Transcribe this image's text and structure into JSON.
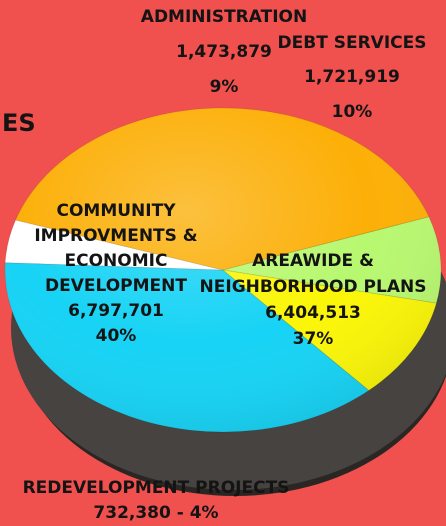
{
  "chart_data": {
    "type": "pie",
    "title_fragment": "ES",
    "slices": [
      {
        "label": "AREAWIDE & NEIGHBORHOOD PLANS",
        "value": 6404513,
        "value_text": "6,404,513",
        "percent": "37%",
        "color": "#17d3f5"
      },
      {
        "label": "REDEVELOPMENT PROJECTS",
        "value": 732380,
        "value_text": "732,380 - 4%",
        "percent": "4%",
        "color": "#ffffff"
      },
      {
        "label": "COMMUNITY IMPROVMENTS & ECONOMIC DEVELOPMENT",
        "value": 6797701,
        "value_text": "6,797,701",
        "percent": "40%",
        "color": "#fcaf07"
      },
      {
        "label": "ADMINISTRATION",
        "value": 1473879,
        "value_text": "1,473,879",
        "percent": "9%",
        "color": "#b8f870"
      },
      {
        "label": "DEBT SERVICES",
        "value": 1721919,
        "value_text": "1,721,919",
        "percent": "10%",
        "color": "#fbf607"
      }
    ]
  }
}
